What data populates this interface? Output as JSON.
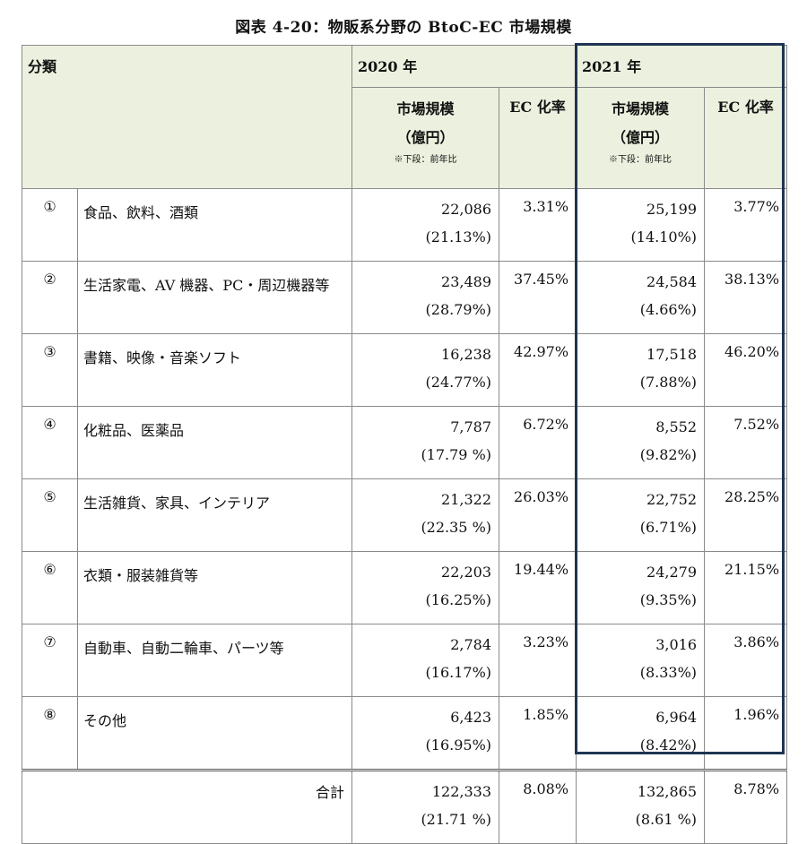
{
  "title": "図表 4-20：物販系分野の BtoC-EC 市場規模",
  "header": {
    "category": "分類",
    "year2020": "2020 年",
    "year2021": "2021 年",
    "market_size": "市場規模",
    "unit": "（億円）",
    "note": "※下段：前年比",
    "ec_rate": "EC 化率"
  },
  "rows": [
    {
      "no": "①",
      "name": "食品、飲料、酒類",
      "v2020": "22,086",
      "g2020": "(21.13%)",
      "r2020": "3.31%",
      "v2021": "25,199",
      "g2021": "(14.10%)",
      "r2021": "3.77%"
    },
    {
      "no": "②",
      "name": "生活家電、AV 機器、PC・周辺機器等",
      "v2020": "23,489",
      "g2020": "(28.79%)",
      "r2020": "37.45%",
      "v2021": "24,584",
      "g2021": "(4.66%)",
      "r2021": "38.13%"
    },
    {
      "no": "③",
      "name": "書籍、映像・音楽ソフト",
      "v2020": "16,238",
      "g2020": "(24.77%)",
      "r2020": "42.97%",
      "v2021": "17,518",
      "g2021": "(7.88%)",
      "r2021": "46.20%"
    },
    {
      "no": "④",
      "name": "化粧品、医薬品",
      "v2020": "7,787",
      "g2020": "(17.79 %)",
      "r2020": "6.72%",
      "v2021": "8,552",
      "g2021": "(9.82%)",
      "r2021": "7.52%"
    },
    {
      "no": "⑤",
      "name": "生活雑貨、家具、インテリア",
      "v2020": "21,322",
      "g2020": "(22.35 %)",
      "r2020": "26.03%",
      "v2021": "22,752",
      "g2021": "(6.71%)",
      "r2021": "28.25%"
    },
    {
      "no": "⑥",
      "name": "衣類・服装雑貨等",
      "v2020": "22,203",
      "g2020": "(16.25%)",
      "r2020": "19.44%",
      "v2021": "24,279",
      "g2021": "(9.35%)",
      "r2021": "21.15%"
    },
    {
      "no": "⑦",
      "name": "自動車、自動二輪車、パーツ等",
      "v2020": "2,784",
      "g2020": "(16.17%)",
      "r2020": "3.23%",
      "v2021": "3,016",
      "g2021": "(8.33%)",
      "r2021": "3.86%"
    },
    {
      "no": "⑧",
      "name": "その他",
      "v2020": "6,423",
      "g2020": "(16.95%)",
      "r2020": "1.85%",
      "v2021": "6,964",
      "g2021": "(8.42%)",
      "r2021": "1.96%"
    }
  ],
  "total": {
    "label": "合計",
    "v2020": "122,333",
    "g2020": "(21.71 %)",
    "r2020": "8.08%",
    "v2021": "132,865",
    "g2021": "(8.61 %)",
    "r2021": "8.78%"
  }
}
